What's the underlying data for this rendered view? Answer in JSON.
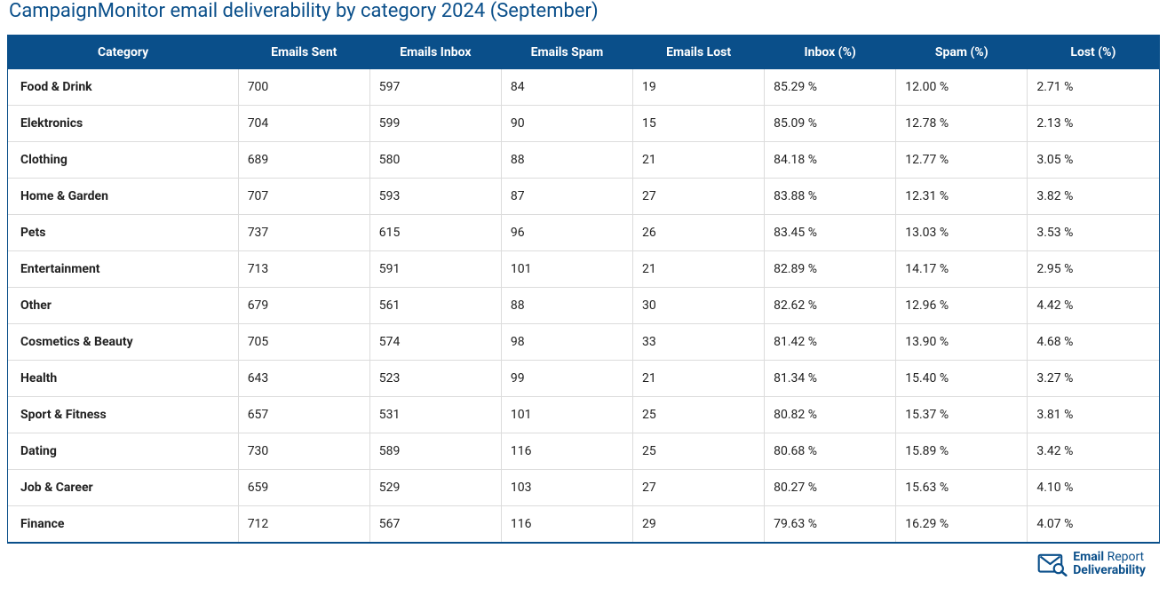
{
  "colors": {
    "title": "#0a4f8a",
    "header_bg": "#0a4f8a",
    "header_text": "#ffffff",
    "row_border": "#dcdcdc",
    "outer_border": "#0a4f8a",
    "logo": "#0a4f8a"
  },
  "title": "CampaignMonitor email deliverability by category 2024 (September)",
  "table": {
    "columns": [
      "Category",
      "Emails Sent",
      "Emails Inbox",
      "Emails Spam",
      "Emails Lost",
      "Inbox (%)",
      "Spam (%)",
      "Lost (%)"
    ],
    "rows": [
      [
        "Food & Drink",
        "700",
        "597",
        "84",
        "19",
        "85.29 %",
        "12.00 %",
        "2.71 %"
      ],
      [
        "Elektronics",
        "704",
        "599",
        "90",
        "15",
        "85.09 %",
        "12.78 %",
        "2.13 %"
      ],
      [
        "Clothing",
        "689",
        "580",
        "88",
        "21",
        "84.18 %",
        "12.77 %",
        "3.05 %"
      ],
      [
        "Home & Garden",
        "707",
        "593",
        "87",
        "27",
        "83.88 %",
        "12.31 %",
        "3.82 %"
      ],
      [
        "Pets",
        "737",
        "615",
        "96",
        "26",
        "83.45 %",
        "13.03 %",
        "3.53 %"
      ],
      [
        "Entertainment",
        "713",
        "591",
        "101",
        "21",
        "82.89 %",
        "14.17 %",
        "2.95 %"
      ],
      [
        "Other",
        "679",
        "561",
        "88",
        "30",
        "82.62 %",
        "12.96 %",
        "4.42 %"
      ],
      [
        "Cosmetics & Beauty",
        "705",
        "574",
        "98",
        "33",
        "81.42 %",
        "13.90 %",
        "4.68 %"
      ],
      [
        "Health",
        "643",
        "523",
        "99",
        "21",
        "81.34 %",
        "15.40 %",
        "3.27 %"
      ],
      [
        "Sport & Fitness",
        "657",
        "531",
        "101",
        "25",
        "80.82 %",
        "15.37 %",
        "3.81 %"
      ],
      [
        "Dating",
        "730",
        "589",
        "116",
        "25",
        "80.68 %",
        "15.89 %",
        "3.42 %"
      ],
      [
        "Job & Career",
        "659",
        "529",
        "103",
        "27",
        "80.27 %",
        "15.63 %",
        "4.10 %"
      ],
      [
        "Finance",
        "712",
        "567",
        "116",
        "29",
        "79.63 %",
        "16.29 %",
        "4.07 %"
      ]
    ]
  },
  "logo": {
    "line1a": "Email ",
    "line1b": "Report",
    "line2": "Deliverability"
  }
}
